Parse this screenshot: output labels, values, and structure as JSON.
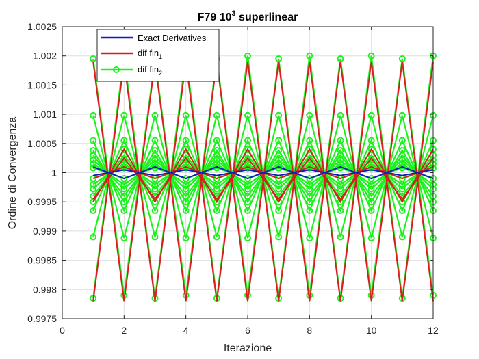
{
  "chart_data": {
    "type": "line",
    "title": "F79 10",
    "title_superscript": "3",
    "title_suffix": " superlinear",
    "xlabel": "Iterazione",
    "ylabel": "Ordine di Convergenza",
    "xlim": [
      0,
      12
    ],
    "ylim": [
      0.9975,
      1.0025
    ],
    "xticks": [
      "0",
      "2",
      "4",
      "6",
      "8",
      "10",
      "12"
    ],
    "yticks": [
      "0.9975",
      "0.998",
      "0.9985",
      "0.999",
      "0.9995",
      "1",
      "1.0005",
      "1.001",
      "1.0015",
      "1.002",
      "1.0025"
    ],
    "grid": true,
    "legend_position": "top-left",
    "legend": [
      {
        "text": "Exact Derivatives",
        "subscript": "",
        "color": "#0b1fbf",
        "marker": false
      },
      {
        "text": "dif fin",
        "subscript": "1",
        "color": "#d62020",
        "marker": false
      },
      {
        "text": "dif fin",
        "subscript": "2",
        "color": "#1ef21e",
        "marker": true
      }
    ],
    "x": [
      1,
      2,
      3,
      4,
      5,
      6,
      7,
      8,
      9,
      10,
      11,
      12
    ],
    "series": [
      {
        "name": "Exact Derivatives",
        "color": "#0b1fbf",
        "marker": false,
        "lines": [
          [
            0.99995,
            1.00005,
            0.99995,
            1.00005,
            0.99995,
            1.00005,
            0.99995,
            1.00005,
            0.99995,
            1.00005,
            0.99995,
            1.00005
          ],
          [
            1.0001,
            0.9999,
            1.0001,
            0.9999,
            1.0001,
            0.9999,
            1.0001,
            0.9999,
            1.0001,
            0.9999,
            1.0001,
            0.9999
          ]
        ]
      },
      {
        "name": "dif fin1",
        "color": "#d62020",
        "marker": false,
        "lines": [
          [
            0.9978,
            1.0019,
            0.9978,
            1.0019,
            0.9978,
            1.0019,
            0.9978,
            1.0019,
            0.9978,
            1.0019,
            0.9978,
            1.0019
          ],
          [
            1.0019,
            0.9978,
            1.0019,
            0.9978,
            1.0019,
            0.9978,
            1.0019,
            0.9978,
            1.0019,
            0.9978,
            1.0019,
            0.9978
          ],
          [
            0.9995,
            1.0004,
            0.9995,
            1.0004,
            0.9995,
            1.0004,
            0.9995,
            1.0004,
            0.9995,
            1.0004,
            0.9995,
            1.0004
          ],
          [
            0.99955,
            1.00025,
            0.99955,
            1.00025,
            0.99955,
            1.00025,
            0.99955,
            1.00025,
            0.99955,
            1.00025,
            0.99955,
            1.00025
          ],
          [
            0.9999,
            1.0001,
            0.9999,
            1.0001,
            0.9999,
            1.0001,
            0.9999,
            1.0001,
            0.9999,
            1.0001,
            0.9999,
            1.0001
          ]
        ]
      },
      {
        "name": "dif fin2",
        "color": "#1ef21e",
        "marker": true,
        "lines": [
          [
            1.00195,
            0.9979,
            1.00195,
            0.9979,
            1.00195,
            0.9979,
            1.00195,
            0.9979,
            1.00195,
            0.9979,
            1.00195,
            0.9979
          ],
          [
            0.99785,
            1.002,
            0.99785,
            1.002,
            0.99785,
            1.002,
            0.99785,
            1.002,
            0.99785,
            1.002,
            0.99785,
            1.002
          ],
          [
            1.00098,
            0.99888,
            1.00098,
            0.99888,
            1.00098,
            0.99888,
            1.00098,
            0.99888,
            1.00098,
            0.99888,
            1.00098,
            0.99888
          ],
          [
            0.9989,
            1.00098,
            0.9989,
            1.00098,
            0.9989,
            1.00098,
            0.9989,
            1.00098,
            0.9989,
            1.00098,
            0.9989,
            1.00098
          ],
          [
            1.00055,
            0.99935,
            1.00055,
            0.99935,
            1.00055,
            0.99935,
            1.00055,
            0.99935,
            1.00055,
            0.99935,
            1.00055,
            0.99935
          ],
          [
            0.99935,
            1.00055,
            0.99935,
            1.00055,
            0.99935,
            1.00055,
            0.99935,
            1.00055,
            0.99935,
            1.00055,
            0.99935,
            1.00055
          ],
          [
            1.00038,
            0.9995,
            1.00038,
            0.9995,
            1.00038,
            0.9995,
            1.00038,
            0.9995,
            1.00038,
            0.9995,
            1.00038,
            0.9995
          ],
          [
            0.9995,
            1.0004,
            0.9995,
            1.0004,
            0.9995,
            1.0004,
            0.9995,
            1.0004,
            0.9995,
            1.0004,
            0.9995,
            1.0004
          ],
          [
            1.0003,
            0.9996,
            1.0003,
            0.9996,
            1.0003,
            0.9996,
            1.0003,
            0.9996,
            1.0003,
            0.9996,
            1.0003,
            0.9996
          ],
          [
            0.9996,
            1.0003,
            0.9996,
            1.0003,
            0.9996,
            1.0003,
            0.9996,
            1.0003,
            0.9996,
            1.0003,
            0.9996,
            1.0003
          ],
          [
            1.00022,
            0.99972,
            1.00022,
            0.99972,
            1.00022,
            0.99972,
            1.00022,
            0.99972,
            1.00022,
            0.99972,
            1.00022,
            0.99972
          ],
          [
            0.99972,
            1.00022,
            0.99972,
            1.00022,
            0.99972,
            1.00022,
            0.99972,
            1.00022,
            0.99972,
            1.00022,
            0.99972,
            1.00022
          ],
          [
            1.00015,
            0.9998,
            1.00015,
            0.9998,
            1.00015,
            0.9998,
            1.00015,
            0.9998,
            1.00015,
            0.9998,
            1.00015,
            0.9998
          ],
          [
            0.9998,
            1.00015,
            0.9998,
            1.00015,
            0.9998,
            1.00015,
            0.9998,
            1.00015,
            0.9998,
            1.00015,
            0.9998,
            1.00015
          ],
          [
            1.00008,
            0.9999,
            1.00008,
            0.9999,
            1.00008,
            0.9999,
            1.00008,
            0.9999,
            1.00008,
            0.9999,
            1.00008,
            0.9999
          ],
          [
            0.9999,
            1.00008,
            0.9999,
            1.00008,
            0.9999,
            1.00008,
            0.9999,
            1.00008,
            0.9999,
            1.00008,
            0.9999,
            1.00008
          ]
        ]
      }
    ]
  }
}
